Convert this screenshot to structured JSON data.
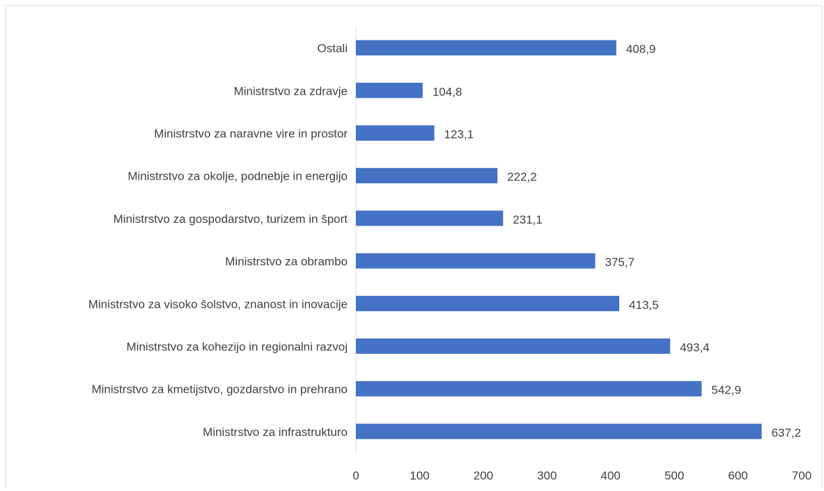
{
  "chart_data": {
    "type": "bar",
    "orientation": "horizontal",
    "categories": [
      "Ostali",
      "Ministrstvo za zdravje",
      "Ministrstvo za naravne vire in prostor",
      "Ministrstvo za okolje, podnebje in energijo",
      "Ministrstvo za gospodarstvo, turizem in šport",
      "Ministrstvo za obrambo",
      "Ministrstvo za visoko šolstvo, znanost in inovacije",
      "Ministrstvo za kohezijo in regionalni razvoj",
      "Ministrstvo za kmetijstvo, gozdarstvo in prehrano",
      "Ministrstvo za infrastrukturo"
    ],
    "values": [
      408.9,
      104.8,
      123.1,
      222.2,
      231.1,
      375.7,
      413.5,
      493.4,
      542.9,
      637.2
    ],
    "value_labels": [
      "408,9",
      "104,8",
      "123,1",
      "222,2",
      "231,1",
      "375,7",
      "413,5",
      "493,4",
      "542,9",
      "637,2"
    ],
    "color": "#4472c4",
    "xlim": [
      0,
      700
    ],
    "xticks": [
      0,
      100,
      200,
      300,
      400,
      500,
      600,
      700
    ],
    "grid": false
  }
}
